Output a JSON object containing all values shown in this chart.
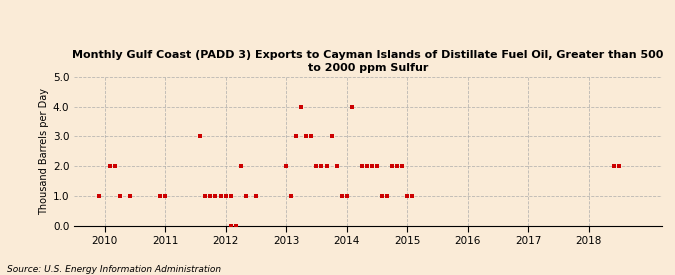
{
  "title": "Monthly Gulf Coast (PADD 3) Exports to Cayman Islands of Distillate Fuel Oil, Greater than 500\nto 2000 ppm Sulfur",
  "ylabel": "Thousand Barrels per Day",
  "source": "Source: U.S. Energy Information Administration",
  "background_color": "#faebd7",
  "plot_background_color": "#faebd7",
  "marker_color": "#cc0000",
  "marker_size": 3.5,
  "ylim": [
    0.0,
    5.0
  ],
  "yticks": [
    0.0,
    1.0,
    2.0,
    3.0,
    4.0,
    5.0
  ],
  "xlim_start": 2009.5,
  "xlim_end": 2019.2,
  "xtick_years": [
    2010,
    2011,
    2012,
    2013,
    2014,
    2015,
    2016,
    2017,
    2018
  ],
  "data_points": [
    [
      2009.917,
      1.0
    ],
    [
      2010.083,
      2.0
    ],
    [
      2010.167,
      2.0
    ],
    [
      2010.25,
      1.0
    ],
    [
      2010.417,
      1.0
    ],
    [
      2010.917,
      1.0
    ],
    [
      2011.0,
      1.0
    ],
    [
      2011.583,
      3.0
    ],
    [
      2011.667,
      1.0
    ],
    [
      2011.75,
      1.0
    ],
    [
      2011.833,
      1.0
    ],
    [
      2011.917,
      1.0
    ],
    [
      2012.0,
      1.0
    ],
    [
      2012.083,
      1.0
    ],
    [
      2012.083,
      0.0
    ],
    [
      2012.167,
      0.0
    ],
    [
      2012.25,
      2.0
    ],
    [
      2012.333,
      1.0
    ],
    [
      2012.5,
      1.0
    ],
    [
      2013.0,
      2.0
    ],
    [
      2013.083,
      1.0
    ],
    [
      2013.167,
      3.0
    ],
    [
      2013.25,
      4.0
    ],
    [
      2013.333,
      3.0
    ],
    [
      2013.417,
      3.0
    ],
    [
      2013.5,
      2.0
    ],
    [
      2013.583,
      2.0
    ],
    [
      2013.667,
      2.0
    ],
    [
      2013.75,
      3.0
    ],
    [
      2013.833,
      2.0
    ],
    [
      2013.917,
      1.0
    ],
    [
      2014.0,
      1.0
    ],
    [
      2014.083,
      4.0
    ],
    [
      2014.25,
      2.0
    ],
    [
      2014.333,
      2.0
    ],
    [
      2014.417,
      2.0
    ],
    [
      2014.5,
      2.0
    ],
    [
      2014.583,
      1.0
    ],
    [
      2014.667,
      1.0
    ],
    [
      2014.75,
      2.0
    ],
    [
      2014.833,
      2.0
    ],
    [
      2014.917,
      2.0
    ],
    [
      2015.0,
      1.0
    ],
    [
      2015.083,
      1.0
    ],
    [
      2018.417,
      2.0
    ],
    [
      2018.5,
      2.0
    ]
  ]
}
